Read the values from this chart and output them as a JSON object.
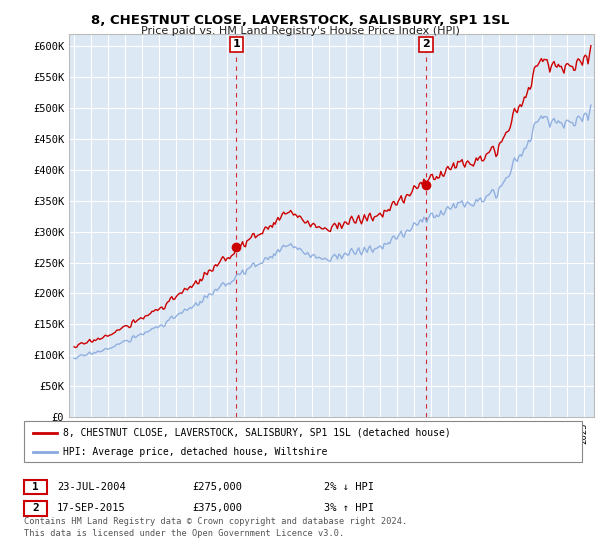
{
  "title": "8, CHESTNUT CLOSE, LAVERSTOCK, SALISBURY, SP1 1SL",
  "subtitle": "Price paid vs. HM Land Registry's House Price Index (HPI)",
  "line1_label": "8, CHESTNUT CLOSE, LAVERSTOCK, SALISBURY, SP1 1SL (detached house)",
  "line1_color": "#cc0000",
  "line2_label": "HPI: Average price, detached house, Wiltshire",
  "line2_color": "#88aadd",
  "ylim": [
    0,
    620000
  ],
  "yticks": [
    0,
    50000,
    100000,
    150000,
    200000,
    250000,
    300000,
    350000,
    400000,
    450000,
    500000,
    550000,
    600000
  ],
  "ytick_labels": [
    "£0",
    "£50K",
    "£100K",
    "£150K",
    "£200K",
    "£250K",
    "£300K",
    "£350K",
    "£400K",
    "£450K",
    "£500K",
    "£550K",
    "£600K"
  ],
  "sale1": {
    "date_num": 2004.55,
    "price": 275000,
    "label": "1",
    "date_str": "23-JUL-2004",
    "price_str": "£275,000",
    "pct": "2% ↓ HPI"
  },
  "sale2": {
    "date_num": 2015.72,
    "price": 375000,
    "label": "2",
    "date_str": "17-SEP-2015",
    "price_str": "£375,000",
    "pct": "3% ↑ HPI"
  },
  "footer1": "Contains HM Land Registry data © Crown copyright and database right 2024.",
  "footer2": "This data is licensed under the Open Government Licence v3.0.",
  "background_color": "#ffffff",
  "plot_bg": "#dde8f5",
  "grid_color": "#ffffff",
  "xlim_left": 1994.7,
  "xlim_right": 2025.6
}
